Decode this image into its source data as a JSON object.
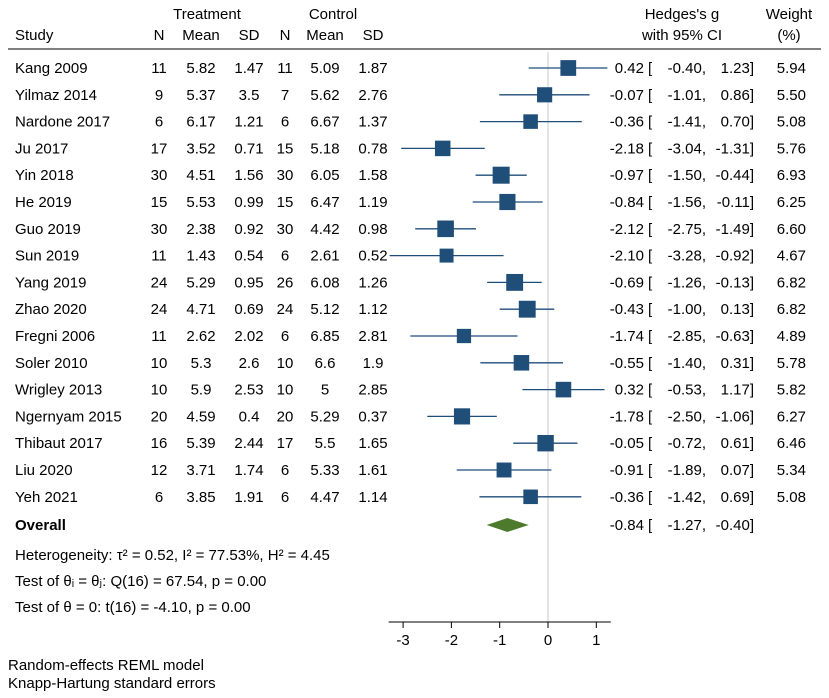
{
  "chart_data": {
    "type": "forest",
    "headers": {
      "treatment": "Treatment",
      "control": "Control",
      "study": "Study",
      "n": "N",
      "mean": "Mean",
      "sd": "SD",
      "effect_line1": "Hedges's g",
      "effect_line2": "with 95% CI",
      "weight_line1": "Weight",
      "weight_line2": "(%)"
    },
    "studies": [
      {
        "study": "Kang 2009",
        "t_n": "11",
        "t_mean": "5.82",
        "t_sd": "1.47",
        "c_n": "11",
        "c_mean": "5.09",
        "c_sd": "1.87",
        "g": 0.42,
        "lo": -0.4,
        "hi": 1.23,
        "g_text": "0.42",
        "lo_text": "-0.40,",
        "hi_text": "1.23]",
        "weight": 5.94,
        "weight_text": "5.94"
      },
      {
        "study": "Yilmaz 2014",
        "t_n": "9",
        "t_mean": "5.37",
        "t_sd": "3.5",
        "c_n": "7",
        "c_mean": "5.62",
        "c_sd": "2.76",
        "g": -0.07,
        "lo": -1.01,
        "hi": 0.86,
        "g_text": "-0.07",
        "lo_text": "-1.01,",
        "hi_text": "0.86]",
        "weight": 5.5,
        "weight_text": "5.50"
      },
      {
        "study": "Nardone 2017",
        "t_n": "6",
        "t_mean": "6.17",
        "t_sd": "1.21",
        "c_n": "6",
        "c_mean": "6.67",
        "c_sd": "1.37",
        "g": -0.36,
        "lo": -1.41,
        "hi": 0.7,
        "g_text": "-0.36",
        "lo_text": "-1.41,",
        "hi_text": "0.70]",
        "weight": 5.08,
        "weight_text": "5.08"
      },
      {
        "study": "Ju 2017",
        "t_n": "17",
        "t_mean": "3.52",
        "t_sd": "0.71",
        "c_n": "15",
        "c_mean": "5.18",
        "c_sd": "0.78",
        "g": -2.18,
        "lo": -3.04,
        "hi": -1.31,
        "g_text": "-2.18",
        "lo_text": "-3.04,",
        "hi_text": "-1.31]",
        "weight": 5.76,
        "weight_text": "5.76"
      },
      {
        "study": "Yin 2018",
        "t_n": "30",
        "t_mean": "4.51",
        "t_sd": "1.56",
        "c_n": "30",
        "c_mean": "6.05",
        "c_sd": "1.58",
        "g": -0.97,
        "lo": -1.5,
        "hi": -0.44,
        "g_text": "-0.97",
        "lo_text": "-1.50,",
        "hi_text": "-0.44]",
        "weight": 6.93,
        "weight_text": "6.93"
      },
      {
        "study": "He 2019",
        "t_n": "15",
        "t_mean": "5.53",
        "t_sd": "0.99",
        "c_n": "15",
        "c_mean": "6.47",
        "c_sd": "1.19",
        "g": -0.84,
        "lo": -1.56,
        "hi": -0.11,
        "g_text": "-0.84",
        "lo_text": "-1.56,",
        "hi_text": "-0.11]",
        "weight": 6.25,
        "weight_text": "6.25"
      },
      {
        "study": "Guo 2019",
        "t_n": "30",
        "t_mean": "2.38",
        "t_sd": "0.92",
        "c_n": "30",
        "c_mean": "4.42",
        "c_sd": "0.98",
        "g": -2.12,
        "lo": -2.75,
        "hi": -1.49,
        "g_text": "-2.12",
        "lo_text": "-2.75,",
        "hi_text": "-1.49]",
        "weight": 6.6,
        "weight_text": "6.60"
      },
      {
        "study": "Sun 2019",
        "t_n": "11",
        "t_mean": "1.43",
        "t_sd": "0.54",
        "c_n": "6",
        "c_mean": "2.61",
        "c_sd": "0.52",
        "g": -2.1,
        "lo": -3.28,
        "hi": -0.92,
        "g_text": "-2.10",
        "lo_text": "-3.28,",
        "hi_text": "-0.92]",
        "weight": 4.67,
        "weight_text": "4.67"
      },
      {
        "study": "Yang 2019",
        "t_n": "24",
        "t_mean": "5.29",
        "t_sd": "0.95",
        "c_n": "26",
        "c_mean": "6.08",
        "c_sd": "1.26",
        "g": -0.69,
        "lo": -1.26,
        "hi": -0.13,
        "g_text": "-0.69",
        "lo_text": "-1.26,",
        "hi_text": "-0.13]",
        "weight": 6.82,
        "weight_text": "6.82"
      },
      {
        "study": "Zhao 2020",
        "t_n": "24",
        "t_mean": "4.71",
        "t_sd": "0.69",
        "c_n": "24",
        "c_mean": "5.12",
        "c_sd": "1.12",
        "g": -0.43,
        "lo": -1.0,
        "hi": 0.13,
        "g_text": "-0.43",
        "lo_text": "-1.00,",
        "hi_text": "0.13]",
        "weight": 6.82,
        "weight_text": "6.82"
      },
      {
        "study": "Fregni 2006",
        "t_n": "11",
        "t_mean": "2.62",
        "t_sd": "2.02",
        "c_n": "6",
        "c_mean": "6.85",
        "c_sd": "2.81",
        "g": -1.74,
        "lo": -2.85,
        "hi": -0.63,
        "g_text": "-1.74",
        "lo_text": "-2.85,",
        "hi_text": "-0.63]",
        "weight": 4.89,
        "weight_text": "4.89"
      },
      {
        "study": "Soler 2010",
        "t_n": "10",
        "t_mean": "5.3",
        "t_sd": "2.6",
        "c_n": "10",
        "c_mean": "6.6",
        "c_sd": "1.9",
        "g": -0.55,
        "lo": -1.4,
        "hi": 0.31,
        "g_text": "-0.55",
        "lo_text": "-1.40,",
        "hi_text": "0.31]",
        "weight": 5.78,
        "weight_text": "5.78"
      },
      {
        "study": "Wrigley 2013",
        "t_n": "10",
        "t_mean": "5.9",
        "t_sd": "2.53",
        "c_n": "10",
        "c_mean": "5",
        "c_sd": "2.85",
        "g": 0.32,
        "lo": -0.53,
        "hi": 1.17,
        "g_text": "0.32",
        "lo_text": "-0.53,",
        "hi_text": "1.17]",
        "weight": 5.82,
        "weight_text": "5.82"
      },
      {
        "study": "Ngernyam 2015",
        "t_n": "20",
        "t_mean": "4.59",
        "t_sd": "0.4",
        "c_n": "20",
        "c_mean": "5.29",
        "c_sd": "0.37",
        "g": -1.78,
        "lo": -2.5,
        "hi": -1.06,
        "g_text": "-1.78",
        "lo_text": "-2.50,",
        "hi_text": "-1.06]",
        "weight": 6.27,
        "weight_text": "6.27"
      },
      {
        "study": "Thibaut 2017",
        "t_n": "16",
        "t_mean": "5.39",
        "t_sd": "2.44",
        "c_n": "17",
        "c_mean": "5.5",
        "c_sd": "1.65",
        "g": -0.05,
        "lo": -0.72,
        "hi": 0.61,
        "g_text": "-0.05",
        "lo_text": "-0.72,",
        "hi_text": "0.61]",
        "weight": 6.46,
        "weight_text": "6.46"
      },
      {
        "study": "Liu 2020",
        "t_n": "12",
        "t_mean": "3.71",
        "t_sd": "1.74",
        "c_n": "6",
        "c_mean": "5.33",
        "c_sd": "1.61",
        "g": -0.91,
        "lo": -1.89,
        "hi": 0.07,
        "g_text": "-0.91",
        "lo_text": "-1.89,",
        "hi_text": "0.07]",
        "weight": 5.34,
        "weight_text": "5.34"
      },
      {
        "study": "Yeh 2021",
        "t_n": "6",
        "t_mean": "3.85",
        "t_sd": "1.91",
        "c_n": "6",
        "c_mean": "4.47",
        "c_sd": "1.14",
        "g": -0.36,
        "lo": -1.42,
        "hi": 0.69,
        "g_text": "-0.36",
        "lo_text": "-1.42,",
        "hi_text": "0.69]",
        "weight": 5.08,
        "weight_text": "5.08"
      }
    ],
    "overall": {
      "label": "Overall",
      "g": -0.84,
      "lo": -1.27,
      "hi": -0.4,
      "g_text": "-0.84",
      "lo_text": "-1.27,",
      "hi_text": "-0.40]"
    },
    "stats": {
      "heterogeneity": "Heterogeneity: τ² = 0.52, I² = 77.53%, H² = 4.45",
      "test_homogeneity": "Test of θᵢ = θⱼ: Q(16) = 67.54, p = 0.00",
      "test_overall": "Test of θ = 0: t(16) = -4.10, p = 0.00"
    },
    "x_axis": {
      "range": [
        -3.3,
        1.3
      ],
      "ticks": [
        -3,
        -2,
        -1,
        0,
        1
      ],
      "tick_labels": [
        "-3",
        "-2",
        "-1",
        "0",
        "1"
      ]
    },
    "footnotes": [
      "Random-effects REML model",
      "Knapp-Hartung standard errors"
    ],
    "colors": {
      "box": "#1f4e79",
      "ci_line": "#1f4e79",
      "diamond": "#4e7a2e",
      "ref_line": "#c8c8c8",
      "axis": "#000000"
    }
  }
}
